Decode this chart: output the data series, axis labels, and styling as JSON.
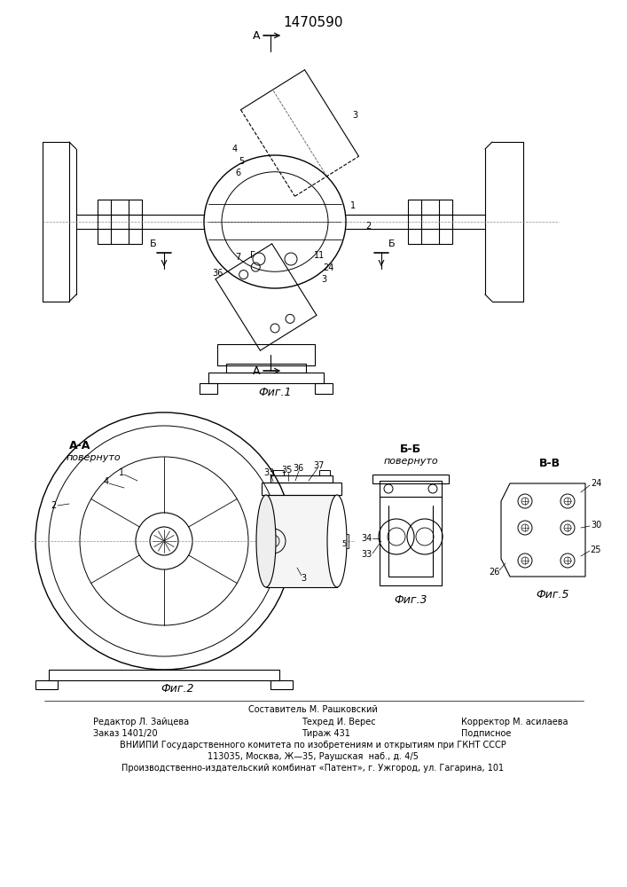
{
  "patent_number": "1470590",
  "fig1_caption": "Фиг.1",
  "fig2_caption": "Фиг.2",
  "fig3_caption": "Фиг.3",
  "fig5_caption": "Фиг.5",
  "section_aa": "А-А",
  "section_bb": "Б-Б",
  "section_vv": "В-В",
  "povern": "повернуто",
  "label_A": "А",
  "label_B": "Б",
  "footer_line1_center": "Составитель М. Рашковский",
  "footer_line2_left": "Редактор Л. Зайцева",
  "footer_line2_center": "Техред И. Верес",
  "footer_line2_right": "Корректор М. асилаева",
  "footer_line3_left": "Заказ 1401/20",
  "footer_line3_center": "Тираж 431",
  "footer_line3_right": "Подписное",
  "footer_line4": "ВНИИПИ Государственного комитета по изобретениям и открытиям при ГКНТ СССР",
  "footer_line5": "113035, Москва, Ж—35, Раушская  наб., д. 4/5",
  "footer_line6": "Производственно-издательский комбинат «Патент», г. Ужгород, ул. Гагарина, 101",
  "line_color": "#000000",
  "bg_color": "#ffffff"
}
